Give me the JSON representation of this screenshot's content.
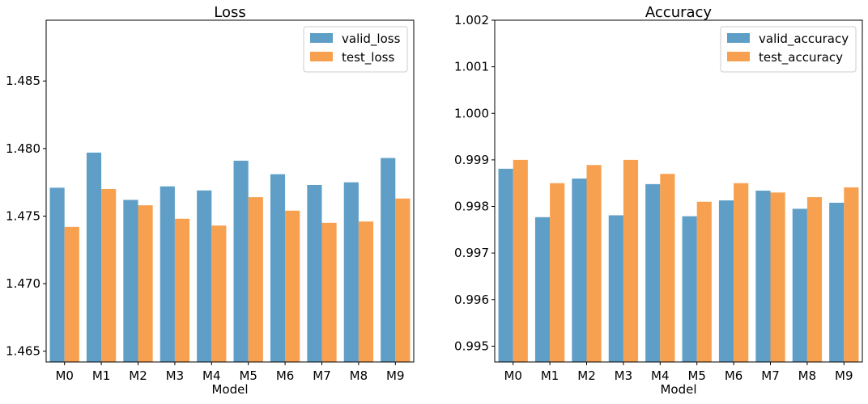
{
  "chart_data": [
    {
      "type": "bar",
      "title": "Loss",
      "xlabel": "Model",
      "ylabel": "",
      "categories": [
        "M0",
        "M1",
        "M2",
        "M3",
        "M4",
        "M5",
        "M6",
        "M7",
        "M8",
        "M9"
      ],
      "series": [
        {
          "name": "valid_loss",
          "color": "#5f9ec7",
          "values": [
            1.4771,
            1.4797,
            1.4762,
            1.4772,
            1.4769,
            1.4791,
            1.4781,
            1.4773,
            1.4775,
            1.4793
          ]
        },
        {
          "name": "test_loss",
          "color": "#f7a150",
          "values": [
            1.4742,
            1.477,
            1.4758,
            1.4748,
            1.4743,
            1.4764,
            1.4754,
            1.4745,
            1.4746,
            1.4763
          ]
        }
      ],
      "ylim": [
        1.4642,
        1.4895
      ],
      "yticks": [
        1.465,
        1.47,
        1.475,
        1.48,
        1.485
      ],
      "ytick_labels": [
        "1.465",
        "1.470",
        "1.475",
        "1.480",
        "1.485"
      ],
      "grid": false,
      "legend_position": "top-right"
    },
    {
      "type": "bar",
      "title": "Accuracy",
      "xlabel": "Model",
      "ylabel": "",
      "categories": [
        "M0",
        "M1",
        "M2",
        "M3",
        "M4",
        "M5",
        "M6",
        "M7",
        "M8",
        "M9"
      ],
      "series": [
        {
          "name": "valid_accuracy",
          "color": "#5f9ec7",
          "values": [
            0.99881,
            0.99777,
            0.9986,
            0.99781,
            0.99848,
            0.99779,
            0.99813,
            0.99834,
            0.99795,
            0.99808
          ]
        },
        {
          "name": "test_accuracy",
          "color": "#f7a150",
          "values": [
            0.999,
            0.9985,
            0.99889,
            0.999,
            0.9987,
            0.9981,
            0.9985,
            0.9983,
            0.9982,
            0.99841
          ]
        }
      ],
      "ylim": [
        0.99466,
        1.002
      ],
      "yticks": [
        0.995,
        0.996,
        0.997,
        0.998,
        0.999,
        1.0,
        1.001,
        1.002
      ],
      "ytick_labels": [
        "0.995",
        "0.996",
        "0.997",
        "0.998",
        "0.999",
        "1.000",
        "1.001",
        "1.002"
      ],
      "grid": false,
      "legend_position": "top-right"
    }
  ]
}
